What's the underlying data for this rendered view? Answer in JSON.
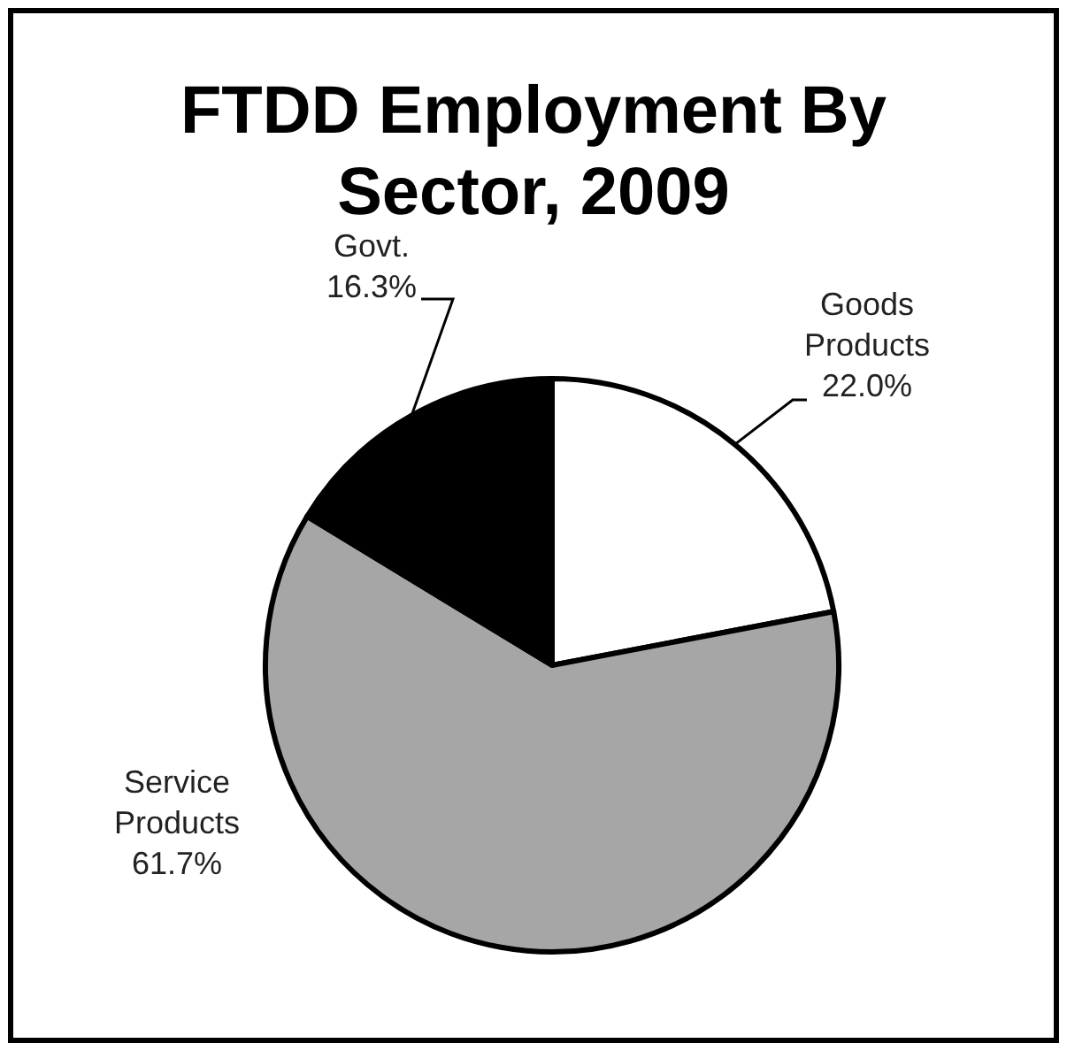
{
  "chart_data": {
    "type": "pie",
    "title": "FTDD Employment By Sector, 2009",
    "categories": [
      "Goods Products",
      "Service Products",
      "Govt."
    ],
    "values": [
      22.0,
      61.7,
      16.3
    ],
    "value_labels": [
      "22.0%",
      "61.7%",
      "16.3%"
    ],
    "colors": [
      "#ffffff",
      "#a6a6a6",
      "#000000"
    ]
  }
}
